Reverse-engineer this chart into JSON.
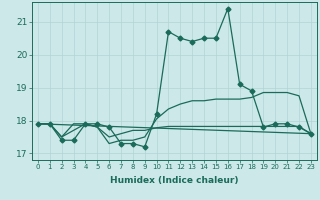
{
  "xlabel": "Humidex (Indice chaleur)",
  "ylabel": "",
  "bg_color": "#cce8e8",
  "line_color": "#1a6b5a",
  "grid_color": "#b0d4d4",
  "xlim": [
    -0.5,
    23.5
  ],
  "ylim": [
    16.8,
    21.6
  ],
  "yticks": [
    17,
    18,
    19,
    20,
    21
  ],
  "xticks": [
    0,
    1,
    2,
    3,
    4,
    5,
    6,
    7,
    8,
    9,
    10,
    11,
    12,
    13,
    14,
    15,
    16,
    17,
    18,
    19,
    20,
    21,
    22,
    23
  ],
  "series": [
    {
      "x": [
        0,
        1,
        2,
        3,
        4,
        5,
        6,
        7,
        8,
        9,
        10,
        11,
        12,
        13,
        14,
        15,
        16,
        17,
        18,
        19,
        20,
        21,
        22,
        23
      ],
      "y": [
        17.9,
        17.9,
        17.4,
        17.4,
        17.9,
        17.9,
        17.8,
        17.3,
        17.3,
        17.2,
        18.2,
        20.7,
        20.5,
        20.4,
        20.5,
        20.5,
        21.4,
        19.1,
        18.9,
        17.8,
        17.9,
        17.9,
        17.8,
        17.6
      ],
      "marker": "D",
      "markersize": 2.5,
      "linewidth": 0.9
    },
    {
      "x": [
        0,
        23
      ],
      "y": [
        17.9,
        17.6
      ],
      "marker": null,
      "markersize": 0,
      "linewidth": 0.9
    },
    {
      "x": [
        0,
        1,
        2,
        3,
        4,
        5,
        6,
        7,
        8,
        9,
        10,
        11,
        12,
        13,
        14,
        15,
        16,
        17,
        18,
        19,
        20,
        21,
        22,
        23
      ],
      "y": [
        17.9,
        17.9,
        17.5,
        17.9,
        17.9,
        17.8,
        17.3,
        17.4,
        17.4,
        17.5,
        18.05,
        18.35,
        18.5,
        18.6,
        18.6,
        18.65,
        18.65,
        18.65,
        18.7,
        18.85,
        18.85,
        18.85,
        18.75,
        17.6
      ],
      "marker": null,
      "markersize": 0,
      "linewidth": 0.9
    },
    {
      "x": [
        0,
        1,
        2,
        3,
        4,
        5,
        6,
        7,
        8,
        9,
        10,
        11,
        12,
        13,
        14,
        15,
        16,
        17,
        18,
        19,
        20,
        21,
        22,
        23
      ],
      "y": [
        17.9,
        17.9,
        17.5,
        17.7,
        17.9,
        17.8,
        17.5,
        17.6,
        17.7,
        17.7,
        17.78,
        17.82,
        17.82,
        17.82,
        17.82,
        17.82,
        17.82,
        17.82,
        17.82,
        17.82,
        17.82,
        17.82,
        17.82,
        17.6
      ],
      "marker": null,
      "markersize": 0,
      "linewidth": 0.9
    }
  ]
}
